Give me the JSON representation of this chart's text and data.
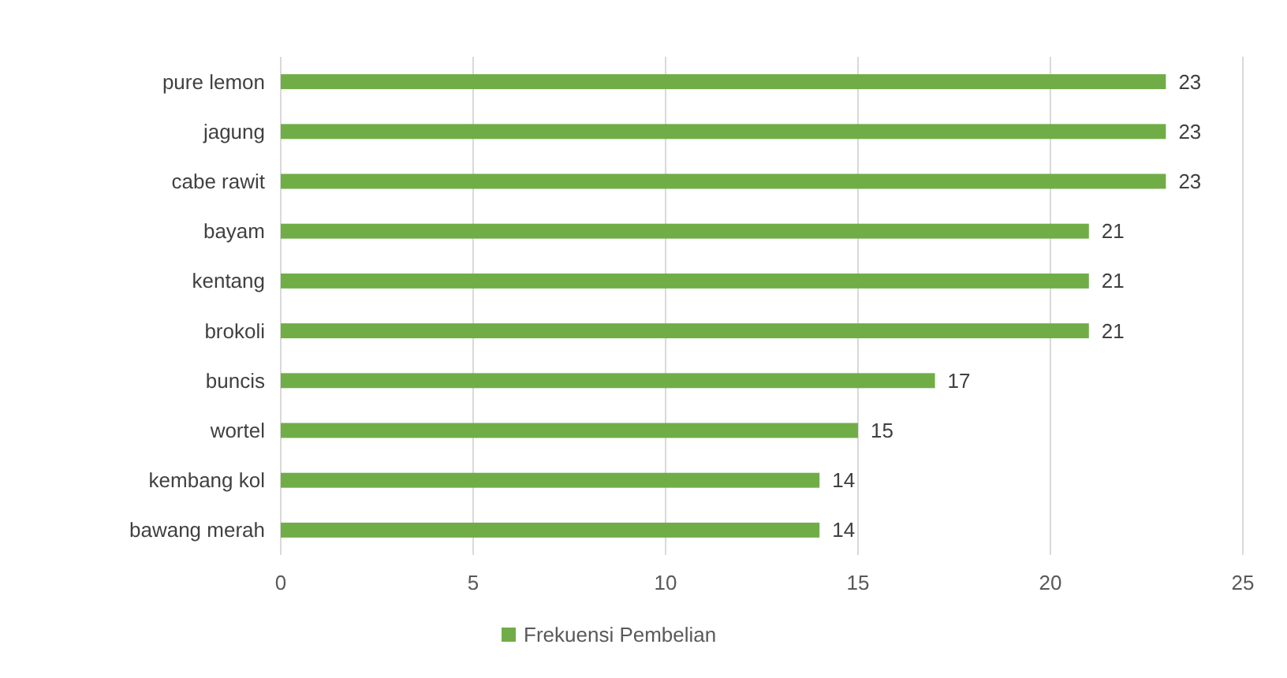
{
  "chart_data": {
    "type": "bar",
    "orientation": "horizontal",
    "categories": [
      "pure lemon",
      "jagung",
      "cabe rawit",
      "bayam",
      "kentang",
      "brokoli",
      "buncis",
      "wortel",
      "kembang kol",
      "bawang merah"
    ],
    "series": [
      {
        "name": "Frekuensi Pembelian",
        "color": "#70ad47",
        "values": [
          23,
          23,
          23,
          21,
          21,
          21,
          17,
          15,
          14,
          14
        ]
      }
    ],
    "xlim": [
      0,
      25
    ],
    "xticks": [
      0,
      5,
      10,
      15,
      20,
      25
    ],
    "grid": "x",
    "legend": "bottom",
    "data_labels": true
  }
}
